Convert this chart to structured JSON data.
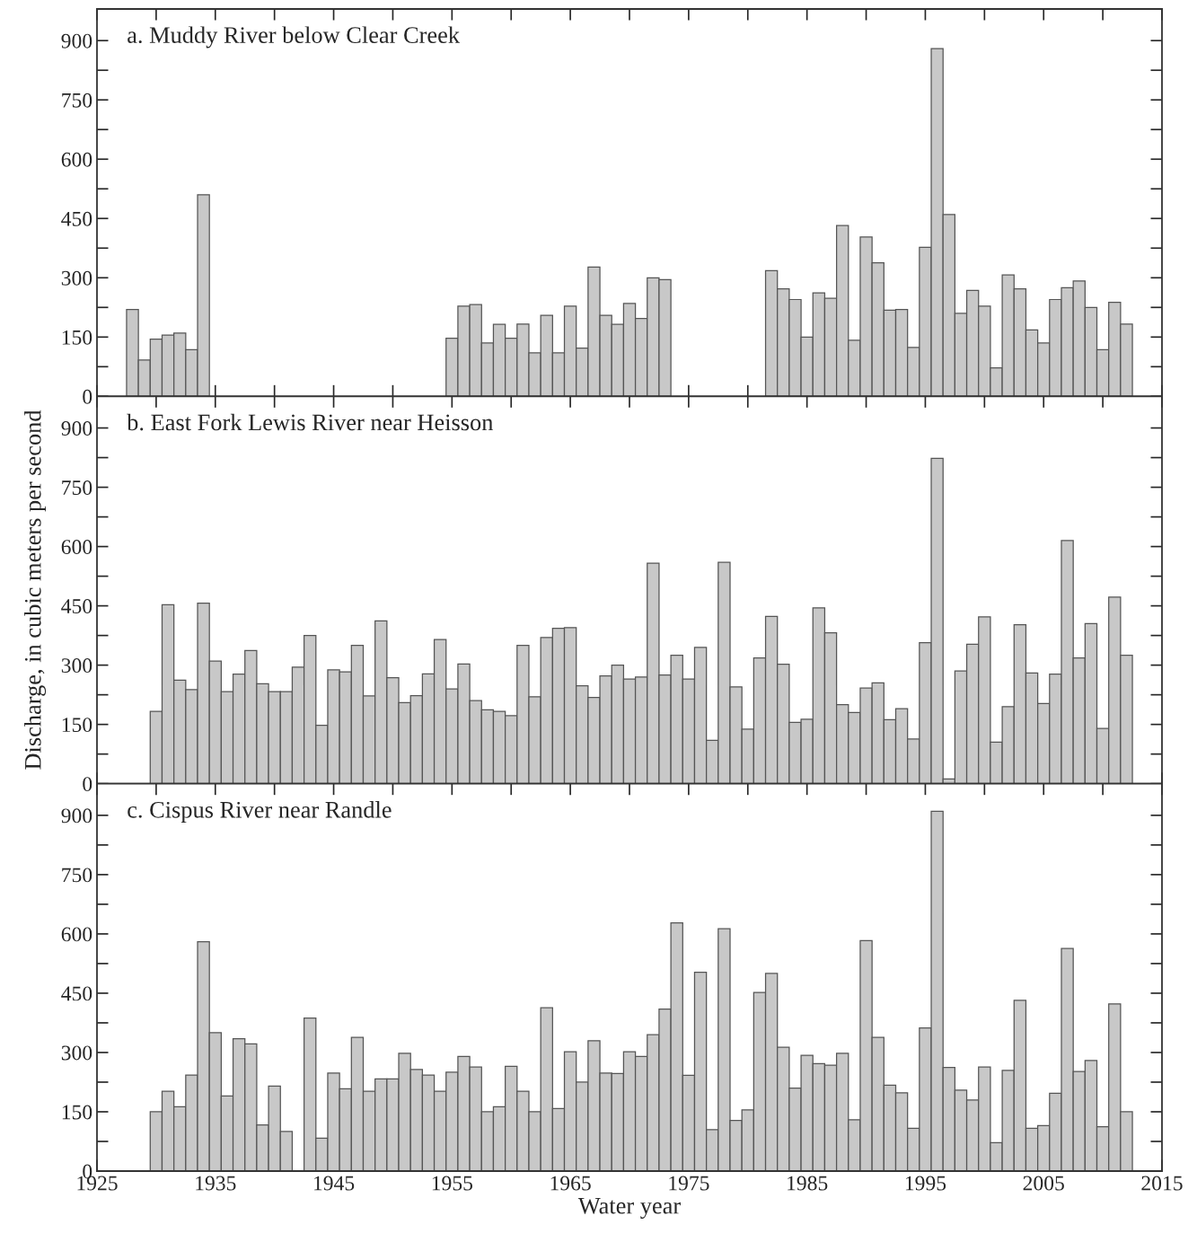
{
  "chart_data": [
    {
      "type": "bar",
      "title": "a. Muddy River below Clear Creek",
      "color": "#c8c8c8",
      "x": [
        1928,
        1929,
        1930,
        1931,
        1932,
        1933,
        1934,
        1955,
        1956,
        1957,
        1958,
        1959,
        1960,
        1961,
        1962,
        1963,
        1964,
        1965,
        1966,
        1967,
        1968,
        1969,
        1970,
        1971,
        1972,
        1973,
        1982,
        1983,
        1984,
        1985,
        1986,
        1987,
        1988,
        1989,
        1990,
        1991,
        1992,
        1993,
        1994,
        1995,
        1996,
        1997,
        1998,
        1999,
        2000,
        2001,
        2002,
        2003,
        2004,
        2005,
        2006,
        2007,
        2008,
        2009,
        2010,
        2011,
        2012
      ],
      "values": [
        220,
        92,
        145,
        155,
        160,
        118,
        510,
        147,
        228,
        232,
        135,
        182,
        147,
        183,
        110,
        205,
        110,
        228,
        122,
        327,
        205,
        182,
        235,
        197,
        300,
        295,
        318,
        272,
        245,
        150,
        262,
        248,
        432,
        142,
        403,
        338,
        218,
        220,
        124,
        377,
        880,
        460,
        210,
        268,
        228,
        72,
        307,
        272,
        168,
        135,
        245,
        275,
        292,
        225,
        118,
        238,
        183
      ],
      "xlim": [
        1925,
        2015
      ],
      "xticks": [
        1925,
        {
          "value": 1930,
          "label": null
        },
        1935,
        {
          "value": 1940,
          "label": null
        },
        1945,
        {
          "value": 1950,
          "label": null
        },
        1955,
        {
          "value": 1960,
          "label": null
        },
        1965,
        {
          "value": 1970,
          "label": null
        },
        1975,
        {
          "value": 1980,
          "label": null
        },
        1985,
        {
          "value": 1990,
          "label": null
        },
        1995,
        {
          "value": 2000,
          "label": null
        },
        2005,
        {
          "value": 2010,
          "label": null
        },
        2015
      ],
      "ylim": [
        0,
        980
      ],
      "yticks": [
        0,
        {
          "value": 75,
          "label": null
        },
        150,
        {
          "value": 225,
          "label": null
        },
        300,
        {
          "value": 375,
          "label": null
        },
        450,
        {
          "value": 525,
          "label": null
        },
        600,
        {
          "value": 675,
          "label": null
        },
        750,
        {
          "value": 825,
          "label": null
        },
        900
      ],
      "tick_labels": "y"
    },
    {
      "type": "bar",
      "title": "b. East Fork Lewis River near Heisson",
      "color": "#c8c8c8",
      "ylabel": "Discharge, in cubic meters per second",
      "x": [
        1930,
        1931,
        1932,
        1933,
        1934,
        1935,
        1936,
        1937,
        1938,
        1939,
        1940,
        1941,
        1942,
        1943,
        1944,
        1945,
        1946,
        1947,
        1948,
        1949,
        1950,
        1951,
        1952,
        1953,
        1954,
        1955,
        1956,
        1957,
        1958,
        1959,
        1960,
        1961,
        1962,
        1963,
        1964,
        1965,
        1966,
        1967,
        1968,
        1969,
        1970,
        1971,
        1972,
        1973,
        1974,
        1975,
        1976,
        1977,
        1978,
        1979,
        1980,
        1981,
        1982,
        1983,
        1984,
        1985,
        1986,
        1987,
        1988,
        1989,
        1990,
        1991,
        1992,
        1993,
        1994,
        1995,
        1996,
        1997,
        1998,
        1999,
        2000,
        2001,
        2002,
        2003,
        2004,
        2005,
        2006,
        2007,
        2008,
        2009,
        2010,
        2011,
        2012
      ],
      "values": [
        183,
        453,
        262,
        238,
        457,
        310,
        233,
        277,
        337,
        253,
        233,
        233,
        295,
        375,
        148,
        288,
        283,
        350,
        222,
        412,
        268,
        205,
        223,
        278,
        365,
        240,
        303,
        210,
        187,
        183,
        172,
        350,
        220,
        370,
        393,
        395,
        248,
        218,
        273,
        300,
        265,
        270,
        558,
        275,
        325,
        265,
        345,
        110,
        560,
        245,
        138,
        318,
        423,
        302,
        155,
        163,
        445,
        382,
        200,
        180,
        242,
        255,
        162,
        190,
        113,
        357,
        823,
        12,
        285,
        353,
        422,
        105,
        195,
        402,
        280,
        203,
        277,
        615,
        318,
        405,
        140,
        472,
        325
      ],
      "xlim": [
        1925,
        2015
      ],
      "xticks": [
        1925,
        {
          "value": 1930,
          "label": null
        },
        1935,
        {
          "value": 1940,
          "label": null
        },
        1945,
        {
          "value": 1950,
          "label": null
        },
        1955,
        {
          "value": 1960,
          "label": null
        },
        1965,
        {
          "value": 1970,
          "label": null
        },
        1975,
        {
          "value": 1980,
          "label": null
        },
        1985,
        {
          "value": 1990,
          "label": null
        },
        1995,
        {
          "value": 2000,
          "label": null
        },
        2005,
        {
          "value": 2010,
          "label": null
        },
        2015
      ],
      "ylim": [
        0,
        980
      ],
      "yticks": [
        0,
        {
          "value": 75,
          "label": null
        },
        150,
        {
          "value": 225,
          "label": null
        },
        300,
        {
          "value": 375,
          "label": null
        },
        450,
        {
          "value": 525,
          "label": null
        },
        600,
        {
          "value": 675,
          "label": null
        },
        750,
        {
          "value": 825,
          "label": null
        },
        900
      ],
      "tick_labels": "y"
    },
    {
      "type": "bar",
      "title": "c. Cispus River near Randle",
      "color": "#c8c8c8",
      "xlabel": "Water year",
      "x": [
        1930,
        1931,
        1932,
        1933,
        1934,
        1935,
        1936,
        1937,
        1938,
        1939,
        1940,
        1941,
        1943,
        1944,
        1945,
        1946,
        1947,
        1948,
        1949,
        1950,
        1951,
        1952,
        1953,
        1954,
        1955,
        1956,
        1957,
        1958,
        1959,
        1960,
        1961,
        1962,
        1963,
        1964,
        1965,
        1966,
        1967,
        1968,
        1969,
        1970,
        1971,
        1972,
        1973,
        1974,
        1975,
        1976,
        1977,
        1978,
        1979,
        1980,
        1981,
        1982,
        1983,
        1984,
        1985,
        1986,
        1987,
        1988,
        1989,
        1990,
        1991,
        1992,
        1993,
        1994,
        1995,
        1996,
        1997,
        1998,
        1999,
        2000,
        2001,
        2002,
        2003,
        2004,
        2005,
        2006,
        2007,
        2008,
        2009,
        2010,
        2011,
        2012
      ],
      "values": [
        150,
        202,
        163,
        243,
        580,
        350,
        190,
        335,
        322,
        117,
        215,
        100,
        387,
        83,
        248,
        208,
        338,
        202,
        233,
        233,
        298,
        257,
        243,
        202,
        250,
        290,
        263,
        150,
        163,
        265,
        202,
        150,
        413,
        158,
        302,
        225,
        330,
        248,
        247,
        302,
        290,
        345,
        410,
        628,
        242,
        503,
        105,
        613,
        128,
        155,
        452,
        500,
        313,
        210,
        293,
        272,
        268,
        298,
        130,
        583,
        338,
        217,
        198,
        108,
        362,
        910,
        262,
        205,
        180,
        263,
        72,
        255,
        432,
        108,
        115,
        197,
        563,
        252,
        280,
        112,
        423,
        150
      ],
      "xlim": [
        1925,
        2015
      ],
      "xticks": [
        1925,
        {
          "value": 1930,
          "label": null
        },
        1935,
        {
          "value": 1940,
          "label": null
        },
        1945,
        {
          "value": 1950,
          "label": null
        },
        1955,
        {
          "value": 1960,
          "label": null
        },
        1965,
        {
          "value": 1970,
          "label": null
        },
        1975,
        {
          "value": 1980,
          "label": null
        },
        1985,
        {
          "value": 1990,
          "label": null
        },
        1995,
        {
          "value": 2000,
          "label": null
        },
        2005,
        {
          "value": 2010,
          "label": null
        },
        2015
      ],
      "ylim": [
        0,
        980
      ],
      "yticks": [
        0,
        {
          "value": 75,
          "label": null
        },
        150,
        {
          "value": 225,
          "label": null
        },
        300,
        {
          "value": 375,
          "label": null
        },
        450,
        {
          "value": 525,
          "label": null
        },
        600,
        {
          "value": 675,
          "label": null
        },
        750,
        {
          "value": 825,
          "label": null
        },
        900
      ]
    }
  ]
}
